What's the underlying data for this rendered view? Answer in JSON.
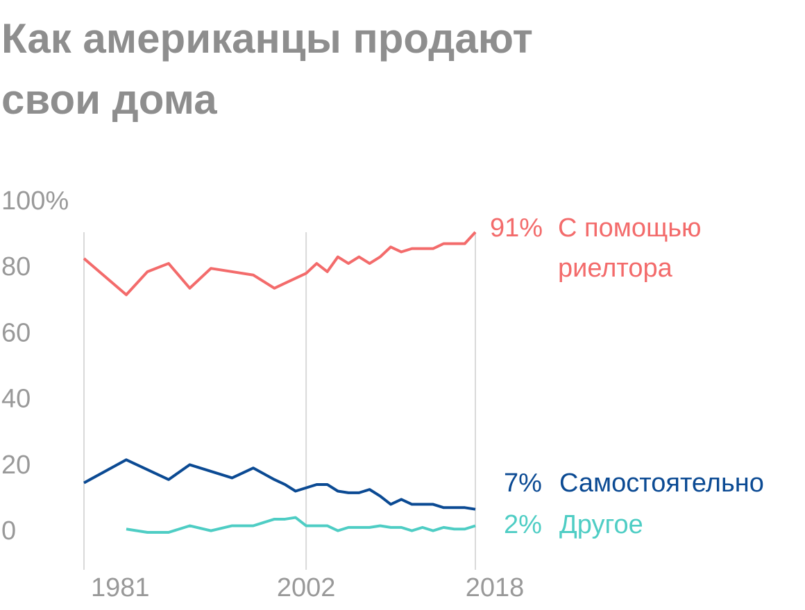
{
  "chart_data": {
    "type": "line",
    "title": "Как американцы продают свои дома",
    "x": [
      1981,
      1985,
      1987,
      1989,
      1991,
      1993,
      1995,
      1997,
      1999,
      2000,
      2001,
      2002,
      2003,
      2004,
      2005,
      2006,
      2007,
      2008,
      2009,
      2010,
      2011,
      2012,
      2013,
      2014,
      2015,
      2016,
      2017,
      2018
    ],
    "series": [
      {
        "name": "С помощью риелтора",
        "color": "#f36b6b",
        "values": [
          83,
          72,
          79,
          81.5,
          74,
          80,
          79,
          78,
          74,
          75.5,
          77,
          78.5,
          81.5,
          79,
          83.5,
          81.5,
          83.5,
          81.5,
          83.5,
          86.5,
          85,
          86,
          86,
          86,
          87.5,
          87.5,
          87.5,
          91
        ],
        "value_labels": [
          null,
          null,
          null,
          null,
          null,
          null,
          null,
          null,
          null,
          null,
          null,
          null,
          null,
          null,
          null,
          null,
          null,
          null,
          null,
          null,
          null,
          null,
          null,
          null,
          null,
          null,
          null,
          "91%"
        ]
      },
      {
        "name": "Самостоятельно",
        "color": "#0b4a93",
        "values": [
          15,
          22,
          19,
          16,
          20.5,
          18.5,
          16.5,
          19.5,
          16,
          14.5,
          12.5,
          13.5,
          14.5,
          14.5,
          12.5,
          12,
          12,
          13,
          11,
          8.5,
          10,
          8.5,
          8.5,
          8.5,
          7.5,
          7.5,
          7.5,
          7
        ],
        "value_labels": [
          null,
          null,
          null,
          null,
          null,
          null,
          null,
          null,
          null,
          null,
          null,
          null,
          null,
          null,
          null,
          null,
          null,
          null,
          null,
          null,
          null,
          null,
          null,
          null,
          null,
          null,
          null,
          "7%"
        ]
      },
      {
        "name": "Другое",
        "color": "#4ecdc4",
        "values": [
          null,
          1,
          0,
          0,
          2,
          0.5,
          2,
          2,
          4,
          4,
          4.5,
          2,
          2,
          2,
          0.5,
          1.5,
          1.5,
          1.5,
          2,
          1.5,
          1.5,
          0.5,
          1.5,
          0.5,
          1.5,
          1,
          1,
          2
        ],
        "value_labels": [
          null,
          null,
          null,
          null,
          null,
          null,
          null,
          null,
          null,
          null,
          null,
          null,
          null,
          null,
          null,
          null,
          null,
          null,
          null,
          null,
          null,
          null,
          null,
          null,
          null,
          null,
          null,
          "2%"
        ]
      }
    ],
    "xlim": [
      1981,
      2018
    ],
    "xticks": [
      1981,
      2002,
      2018
    ],
    "ylim": [
      0,
      100
    ],
    "yticks": [
      0,
      20,
      40,
      60,
      {
        "value": 100,
        "label": "100%"
      },
      80
    ],
    "grid": true
  }
}
